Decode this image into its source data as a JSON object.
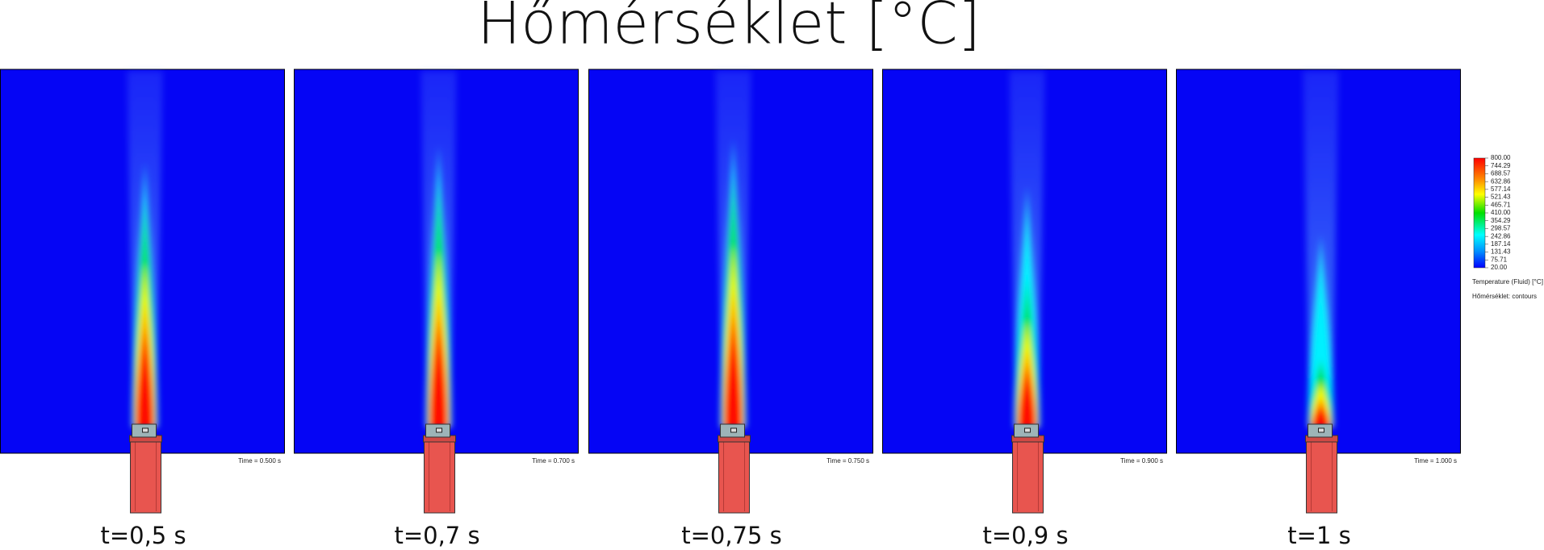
{
  "header": {
    "title": "Hőmérséklet [°C]"
  },
  "panels": [
    {
      "time_label": "Time = 0.500 s",
      "caption": "t=0,5 s"
    },
    {
      "time_label": "Time = 0.700 s",
      "caption": "t=0,7 s"
    },
    {
      "time_label": "Time = 0.750 s",
      "caption": "t=0,75 s"
    },
    {
      "time_label": "Time = 0.900 s",
      "caption": "t=0,9 s"
    },
    {
      "time_label": "Time = 1.000 s",
      "caption": "t=1 s"
    }
  ],
  "legend": {
    "ticks": [
      "800.00",
      "744.29",
      "688.57",
      "632.86",
      "577.14",
      "521.43",
      "465.71",
      "410.00",
      "354.29",
      "298.57",
      "242.86",
      "187.14",
      "131.43",
      "75.71",
      "20.00"
    ],
    "title": "Temperature (Fluid) [°C]",
    "subtitle": "Hőmérséklet: contours"
  }
}
